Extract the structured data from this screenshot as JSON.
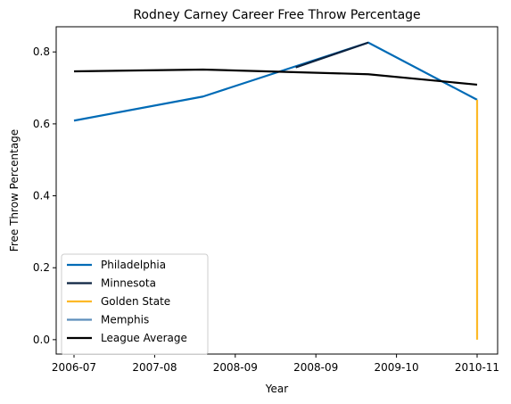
{
  "chart_data": {
    "type": "line",
    "title": "Rodney Carney Career Free Throw Percentage",
    "xlabel": "Year",
    "ylabel": "Free Throw Percentage",
    "categories": [
      "2006-07",
      "2007-08",
      "2008-09",
      "2008-09",
      "2009-10",
      "2010-11"
    ],
    "ylim": [
      -0.04,
      0.87
    ],
    "yticks": [
      0.0,
      0.2,
      0.4,
      0.6,
      0.8
    ],
    "ytick_labels": [
      "0.0",
      "0.2",
      "0.4",
      "0.6",
      "0.8"
    ],
    "grid": false,
    "legend_position": "lower-left",
    "series": [
      {
        "name": "Philadelphia",
        "color": "#006bb6",
        "points": [
          {
            "x": 0,
            "y": 0.609
          },
          {
            "x": 1.6,
            "y": 0.676
          },
          {
            "x": 3.65,
            "y": 0.826
          },
          {
            "x": 5,
            "y": 0.667
          }
        ]
      },
      {
        "name": "Minnesota",
        "color": "#0c2340",
        "points": [
          {
            "x": 2.75,
            "y": 0.757
          },
          {
            "x": 3.65,
            "y": 0.826
          }
        ]
      },
      {
        "name": "Golden State",
        "color": "#fdb927",
        "points": [
          {
            "x": 5,
            "y": 0.667
          },
          {
            "x": 5,
            "y": 0.0
          }
        ]
      },
      {
        "name": "Memphis",
        "color": "#5d8fbc",
        "points": []
      },
      {
        "name": "League Average",
        "color": "#000000",
        "points": [
          {
            "x": 0,
            "y": 0.746
          },
          {
            "x": 1.6,
            "y": 0.751
          },
          {
            "x": 3.65,
            "y": 0.738
          },
          {
            "x": 5,
            "y": 0.709
          }
        ]
      }
    ]
  }
}
